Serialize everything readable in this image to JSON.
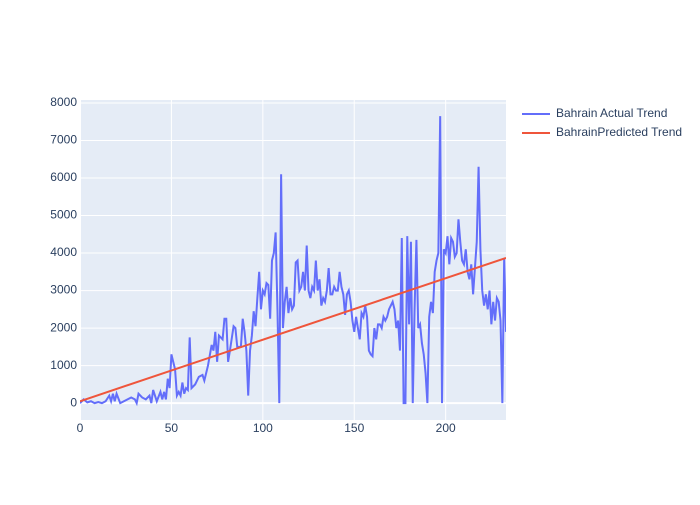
{
  "chart_data": {
    "type": "line",
    "series": [
      {
        "name": "Bahrain Actual Trend",
        "color": "#636efa",
        "x": [
          0,
          2,
          4,
          6,
          8,
          10,
          12,
          14,
          16,
          17,
          18,
          19,
          20,
          22,
          24,
          26,
          28,
          30,
          31,
          32,
          34,
          36,
          38,
          39,
          40,
          42,
          44,
          45,
          46,
          47,
          48,
          49,
          50,
          52,
          53,
          54,
          55,
          56,
          57,
          58,
          59,
          60,
          61,
          63,
          65,
          67,
          68,
          70,
          72,
          73,
          74,
          75,
          76,
          78,
          79,
          80,
          81,
          82,
          84,
          85,
          86,
          88,
          89,
          90,
          91,
          92,
          93,
          94,
          95,
          96,
          97,
          98,
          99,
          100,
          101,
          102,
          103,
          104,
          105,
          106,
          107,
          108,
          109,
          110,
          111,
          112,
          113,
          114,
          115,
          116,
          117,
          118,
          119,
          120,
          121,
          122,
          123,
          124,
          125,
          126,
          127,
          128,
          129,
          130,
          131,
          132,
          133,
          134,
          135,
          136,
          137,
          138,
          139,
          140,
          141,
          142,
          143,
          144,
          145,
          146,
          147,
          148,
          149,
          150,
          151,
          152,
          153,
          154,
          155,
          156,
          157,
          158,
          159,
          160,
          161,
          162,
          163,
          164,
          165,
          166,
          167,
          168,
          169,
          170,
          171,
          172,
          173,
          174,
          175,
          176,
          177,
          178,
          179,
          180,
          181,
          182,
          183,
          184,
          185,
          186,
          187,
          188,
          189,
          190,
          191,
          192,
          193,
          194,
          195,
          196,
          197,
          198,
          199,
          200,
          201,
          202,
          203,
          204,
          205,
          206,
          207,
          208,
          209,
          210,
          211,
          212,
          213,
          214,
          215,
          216,
          217,
          218,
          219,
          220,
          221,
          222,
          223,
          224,
          225,
          226,
          227,
          228,
          229,
          230,
          231,
          232,
          233
        ],
        "values": [
          0,
          100,
          20,
          50,
          0,
          30,
          0,
          50,
          200,
          50,
          250,
          50,
          250,
          0,
          50,
          100,
          150,
          100,
          0,
          250,
          150,
          100,
          200,
          0,
          350,
          50,
          300,
          100,
          300,
          100,
          650,
          400,
          1300,
          900,
          200,
          300,
          200,
          550,
          250,
          400,
          350,
          1750,
          400,
          500,
          700,
          750,
          600,
          1000,
          1550,
          1400,
          1900,
          1100,
          1800,
          1700,
          2250,
          2250,
          1100,
          1400,
          2050,
          2000,
          1500,
          1500,
          2250,
          1900,
          1400,
          200,
          1400,
          1800,
          2450,
          2050,
          2800,
          3500,
          2500,
          3000,
          2900,
          3200,
          3150,
          2250,
          3800,
          4000,
          4550,
          2500,
          0,
          6100,
          2000,
          2700,
          3100,
          2400,
          2800,
          2500,
          2600,
          3750,
          3800,
          3000,
          3100,
          3500,
          3000,
          4200,
          3000,
          2800,
          3100,
          3000,
          3800,
          3000,
          3300,
          2600,
          2800,
          2700,
          3000,
          3600,
          2900,
          2900,
          3100,
          3000,
          3000,
          3500,
          3100,
          2900,
          2350,
          2900,
          3000,
          2700,
          2200,
          1900,
          2300,
          2000,
          1700,
          2400,
          2300,
          2600,
          2300,
          1400,
          1300,
          1250,
          2000,
          1700,
          2100,
          2100,
          2000,
          2300,
          2200,
          2300,
          2500,
          2600,
          2700,
          2500,
          2000,
          2200,
          1400,
          4400,
          0,
          0,
          4450,
          2100,
          4300,
          0,
          2500,
          4350,
          2000,
          2100,
          1600,
          1300,
          800,
          0,
          2300,
          2700,
          2400,
          3500,
          3800,
          4000,
          7650,
          0,
          4100,
          4000,
          4450,
          3700,
          4400,
          4300,
          3900,
          4000,
          4900,
          4300,
          3800,
          3700,
          4100,
          3500,
          3300,
          3700,
          2900,
          3600,
          4300,
          6300,
          4100,
          3000,
          2600,
          2900,
          2500,
          3000,
          2100,
          2700,
          2200,
          2800,
          2700,
          2200,
          0,
          3850,
          1900
        ]
      },
      {
        "name": "BahrainPredicted Trend",
        "color": "#EF553B",
        "x": [
          0,
          233
        ],
        "values": [
          50,
          3870
        ]
      }
    ],
    "xlim": [
      0,
      233
    ],
    "xticks": [
      0,
      50,
      100,
      150,
      200
    ],
    "ylim": [
      -450,
      8080
    ],
    "yticks": [
      0,
      1000,
      2000,
      3000,
      4000,
      5000,
      6000,
      7000,
      8000
    ],
    "grid": true,
    "legend": "right"
  }
}
